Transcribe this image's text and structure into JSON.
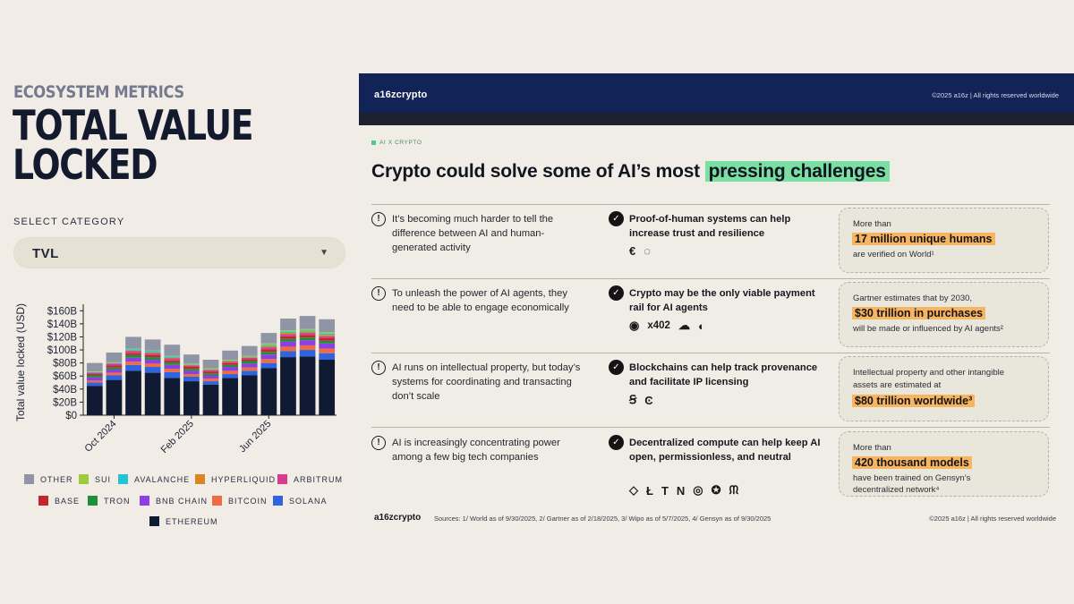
{
  "left": {
    "eyebrow": "ECOSYSTEM METRICS",
    "title_line1": "TOTAL VALUE",
    "title_line2": "LOCKED",
    "select_label": "SELECT CATEGORY",
    "select_value": "TVL",
    "select_icon": "chevron-down-icon"
  },
  "chart_data": {
    "type": "bar",
    "stacked": true,
    "ylabel": "Total value locked (USD)",
    "y_ticks": [
      "$0",
      "$20B",
      "$40B",
      "$60B",
      "$80B",
      "$100B",
      "$120B",
      "$140B",
      "$160B"
    ],
    "ylim": [
      0,
      170
    ],
    "x_ticks": [
      "Oct 2024",
      "Feb 2025",
      "Jun 2025"
    ],
    "x_tick_index": [
      1,
      5,
      9
    ],
    "categories": [
      "Sep 2024",
      "Oct 2024",
      "Nov 2024",
      "Dec 2024",
      "Jan 2025",
      "Feb 2025",
      "Mar 2025",
      "Apr 2025",
      "May 2025",
      "Jun 2025",
      "Jul 2025",
      "Aug 2025",
      "Sep 2025"
    ],
    "legend_placement": "bottom",
    "grid": false,
    "series": [
      {
        "name": "ETHEREUM",
        "color": "#111a33",
        "values": [
          45,
          54,
          68,
          65,
          57,
          52,
          47,
          57,
          61,
          72,
          89,
          90,
          85
        ]
      },
      {
        "name": "SOLANA",
        "color": "#2f63e0",
        "values": [
          5,
          7,
          9,
          9,
          9,
          7,
          5,
          6,
          7,
          8,
          9,
          10,
          10
        ]
      },
      {
        "name": "BITCOIN",
        "color": "#ef6b43",
        "values": [
          3,
          4,
          5,
          5,
          5,
          4,
          4,
          5,
          5,
          6,
          7,
          7,
          7
        ]
      },
      {
        "name": "BNB CHAIN",
        "color": "#8e3fe0",
        "values": [
          5,
          5,
          6,
          6,
          6,
          5,
          5,
          6,
          6,
          7,
          8,
          8,
          8
        ]
      },
      {
        "name": "TRON",
        "color": "#1f8f3a",
        "values": [
          3,
          3,
          4,
          4,
          4,
          3,
          3,
          3,
          4,
          4,
          4,
          4,
          4
        ]
      },
      {
        "name": "BASE",
        "color": "#c0282e",
        "values": [
          2,
          3,
          3,
          3,
          3,
          3,
          3,
          3,
          3,
          4,
          4,
          4,
          4
        ]
      },
      {
        "name": "ARBITRUM",
        "color": "#d83a8d",
        "values": [
          2,
          3,
          3,
          3,
          3,
          2,
          2,
          2,
          2,
          3,
          3,
          3,
          3
        ]
      },
      {
        "name": "HYPERLIQUID",
        "color": "#d8861f",
        "values": [
          0,
          0,
          1,
          1,
          1,
          1,
          1,
          1,
          1,
          2,
          2,
          2,
          2
        ]
      },
      {
        "name": "AVALANCHE",
        "color": "#22c3d3",
        "values": [
          1,
          1,
          2,
          2,
          2,
          1,
          1,
          1,
          1,
          2,
          2,
          2,
          2
        ]
      },
      {
        "name": "SUI",
        "color": "#9ccc3c",
        "values": [
          1,
          1,
          1,
          1,
          1,
          1,
          1,
          1,
          1,
          2,
          2,
          2,
          2
        ]
      },
      {
        "name": "OTHER",
        "color": "#9095a6",
        "values": [
          13,
          15,
          18,
          17,
          17,
          14,
          13,
          14,
          15,
          16,
          18,
          20,
          20
        ]
      }
    ],
    "legend_order": [
      "OTHER",
      "SUI",
      "AVALANCHE",
      "HYPERLIQUID",
      "ARBITRUM",
      "BASE",
      "TRON",
      "BNB CHAIN",
      "BITCOIN",
      "SOLANA",
      "ETHEREUM"
    ]
  },
  "slide": {
    "brand": "a16zcrypto",
    "copyright": "©2025 a16z | All rights reserved worldwide",
    "tag": "AI X CRYPTO",
    "headline_pre": "Crypto could solve some of AI’s most ",
    "headline_hl": "pressing challenges",
    "rows": [
      {
        "problem": "It’s becoming much harder to tell the difference between AI and human-generated activity",
        "solution": "Proof-of-human systems can help increase trust and resilience",
        "icons": [
          "€",
          "◌"
        ],
        "icon_names": [
          "world-logo-icon",
          "ring-logo-icon"
        ],
        "stat_pre": "More than",
        "stat_big": "17 million unique humans",
        "stat_post": "are verified on World¹"
      },
      {
        "problem": "To unleash the power of AI agents, they need to be able to engage economically",
        "solution": "Crypto may be the only viable payment rail for AI agents",
        "icons": [
          "◉",
          "x402",
          "☁",
          "◐"
        ],
        "icon_names": [
          "target-logo-icon",
          "x402-logo",
          "cloudflare-logo-icon",
          "moon-logo-icon"
        ],
        "stat_pre": "Gartner estimates that by 2030,",
        "stat_big": "$30 trillion in purchases",
        "stat_post": "will be made or influenced by AI agents²"
      },
      {
        "problem": "AI runs on intellectual property, but today’s systems for coordinating and transacting don’t scale",
        "solution": "Blockchains can help track provenance and facilitate IP licensing",
        "icons": [
          "Ꞩ",
          "Ͼ"
        ],
        "icon_names": [
          "story-logo-icon",
          "camp-logo-icon"
        ],
        "stat_pre": "Intellectual property and other intangible",
        "stat_pre2": "assets are estimated at",
        "stat_big": "$80 trillion worldwide³",
        "stat_post": ""
      },
      {
        "problem": "AI is increasingly concentrating power among a few big tech companies",
        "solution": "Decentralized compute can help keep AI open, permissionless, and neutral",
        "icons": [
          "◇",
          "Ł",
          "T",
          "N",
          "◎",
          "✪",
          "ᙏ"
        ],
        "icon_names": [
          "diamond-logo-icon",
          "l-logo-icon",
          "t-logo-icon",
          "n-logo-icon",
          "circle-logo-icon",
          "check-badge-logo-icon",
          "creature-logo-icon"
        ],
        "stat_pre": "More than",
        "stat_big": "420 thousand models",
        "stat_post": "have been trained on Gensyn’s",
        "stat_post2": "decentralized network⁴"
      }
    ],
    "footer_brand": "a16zcrypto",
    "sources": "Sources: 1/ World as of 9/30/2025, 2/ Gartner as of 2/18/2025, 3/ Wipo as of 5/7/2025, 4/ Gensyn as of 9/30/2025",
    "footer_copyright": "©2025 a16z | All rights reserved worldwide"
  }
}
